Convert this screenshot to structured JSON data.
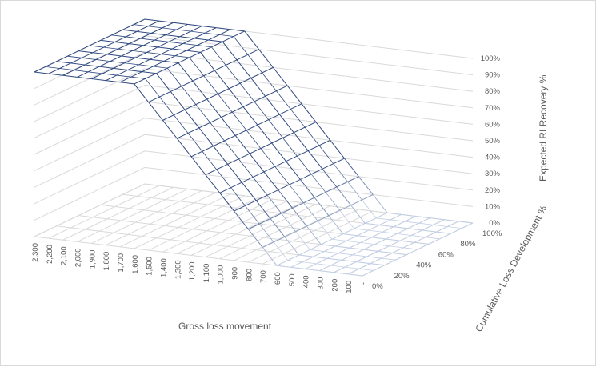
{
  "chart_data": {
    "type": "surface",
    "x_axis": {
      "title": "Gross loss movement",
      "categories": [
        "2,300",
        "2,200",
        "2,100",
        "2,000",
        "1,900",
        "1,800",
        "1,700",
        "1,600",
        "1,500",
        "1,400",
        "1,300",
        "1,200",
        "1,100",
        "1,000",
        "900",
        "800",
        "700",
        "600",
        "500",
        "400",
        "300",
        "200",
        "100",
        "-"
      ]
    },
    "y_axis": {
      "title": "Cumulative Loss Development %",
      "categories": [
        "0%",
        "20%",
        "40%",
        "60%",
        "80%",
        "100%"
      ]
    },
    "z_axis": {
      "title": "Expected RI Recovery %",
      "ticks": [
        "0%",
        "10%",
        "20%",
        "30%",
        "40%",
        "50%",
        "60%",
        "70%",
        "80%",
        "90%",
        "100%"
      ],
      "range": [
        0,
        1
      ]
    },
    "surface_rule": {
      "description": "Recovery is 100% at gross loss movement 1,600 and above, falls linearly to 0% at 600 and below; constant across cumulative loss development.",
      "full_at_or_above": 1600,
      "zero_at_or_below": 600
    }
  }
}
